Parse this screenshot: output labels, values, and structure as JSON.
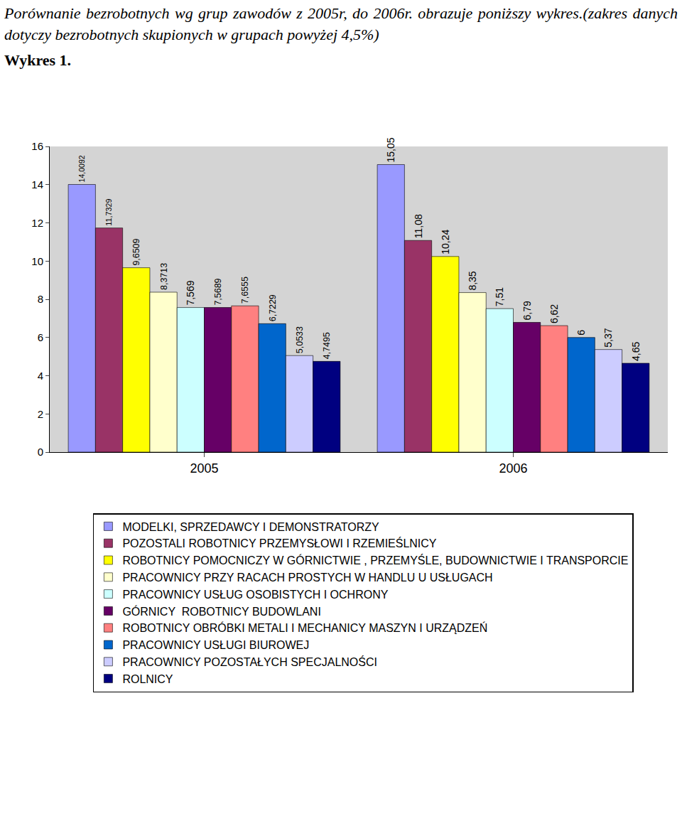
{
  "chart_data": {
    "type": "bar",
    "title": "Porównanie bezrobotnych wg grup zawodów z 2005r, do 2006r. obrazuje poniższy wykres.(zakres danych dotyczy bezrobotnych skupionych w grupach powyżej 4,5%)",
    "subtitle": "Wykres 1.",
    "categories": [
      "2005",
      "2006"
    ],
    "series": [
      {
        "name": "MODELKI, SPRZEDAWCY I DEMONSTRATORZY",
        "color": "#9999ff",
        "values": [
          14.0092,
          15.05
        ],
        "value_labels": [
          "14,0092",
          "15,05"
        ]
      },
      {
        "name": "POZOSTALI ROBOTNICY PRZEMYSŁOWI I RZEMIEŚLNICY",
        "color": "#993366",
        "values": [
          11.7329,
          11.08
        ],
        "value_labels": [
          "11,7329",
          "11,08"
        ]
      },
      {
        "name": "ROBOTNICY POMOCNICZY W GÓRNICTWIE , PRZEMYŚLE, BUDOWNICTWIE I TRANSPORCIE",
        "color": "#ffff00",
        "values": [
          9.6509,
          10.24
        ],
        "value_labels": [
          "9,6509",
          "10,24"
        ]
      },
      {
        "name": "PRACOWNICY PRZY RACACH PROSTYCH W HANDLU U USŁUGACH",
        "color": "#ffffcc",
        "values": [
          8.3713,
          8.35
        ],
        "value_labels": [
          "8,3713",
          "8,35"
        ]
      },
      {
        "name": "PRACOWNICY USŁUG OSOBISTYCH I OCHRONY",
        "color": "#ccffff",
        "values": [
          7.569,
          7.51
        ],
        "value_labels": [
          "7,569",
          "7,51"
        ]
      },
      {
        "name": "GÓRNICY  ROBOTNICY BUDOWLANI",
        "color": "#660066",
        "values": [
          7.5689,
          6.79
        ],
        "value_labels": [
          "7,5689",
          "6,79"
        ]
      },
      {
        "name": "ROBOTNICY OBRÓBKI METALI I MECHANICY MASZYN I URZĄDZEŃ",
        "color": "#ff8080",
        "values": [
          7.6555,
          6.62
        ],
        "value_labels": [
          "7,6555",
          "6,62"
        ]
      },
      {
        "name": "PRACOWNICY USŁUGI BIUROWEJ",
        "color": "#0066cc",
        "values": [
          6.7229,
          6
        ],
        "value_labels": [
          "6,7229",
          "6"
        ]
      },
      {
        "name": "PRACOWNICY POZOSTAŁYCH SPECJALNOŚCI",
        "color": "#ccccff",
        "values": [
          5.0533,
          5.37
        ],
        "value_labels": [
          "5,0533",
          "5,37"
        ]
      },
      {
        "name": "ROLNICY",
        "color": "#000080",
        "values": [
          4.7495,
          4.65
        ],
        "value_labels": [
          "4,7495",
          "4,65"
        ]
      }
    ],
    "ylim": [
      0,
      16
    ],
    "yticks": [
      0,
      2,
      4,
      6,
      8,
      10,
      12,
      14,
      16
    ],
    "grid": false,
    "legend": "bottom",
    "data_labels": true
  }
}
